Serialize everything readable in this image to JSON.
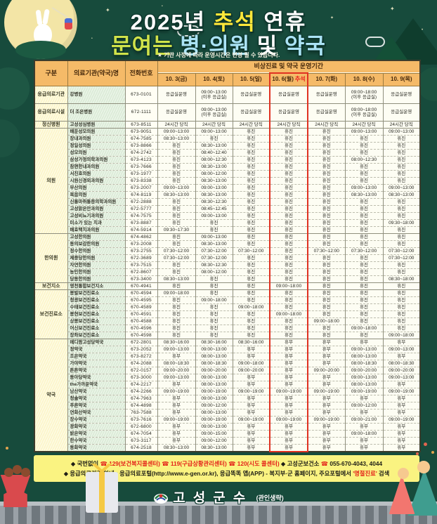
{
  "header": {
    "title1_year": "2025년 ",
    "title1_chuseok": "추석",
    "title1_rest": " 연휴",
    "title2_open": "문여는 ",
    "title2_hospital": "병·의원",
    "title2_and": " 및 ",
    "title2_pharmacy": "약국",
    "notice": "★ 기관 사정에 따라 운영시간은 변경 될 수 있습니다."
  },
  "table": {
    "col_headers": {
      "gubun": "구분",
      "name": "의료기관(약국)명",
      "phone": "전화번호",
      "period": "비상진료 및 약국 운영기간"
    },
    "dates": [
      "10. 3(금)",
      "10. 4(토)",
      "10. 5(일)",
      "10. 6(월)",
      "10. 7(화)",
      "10. 8(수)",
      "10. 9(목)"
    ],
    "chuseok_label": "추석",
    "chuseok_col_index": 3,
    "groups": [
      {
        "label": "응급의료기관",
        "rows": [
          {
            "name": "강병원",
            "phone": "673-0101",
            "tall": true,
            "days": [
              "응급실운영",
              "09:00~13:00\n(이후 응급실)",
              "응급실운영",
              "응급실운영",
              "응급실운영",
              "09:00~18:00\n(이후 응급실)",
              "응급실운영"
            ]
          }
        ]
      },
      {
        "label": "응급의료시설",
        "rows": [
          {
            "name": "더 조은병원",
            "phone": "672-1111",
            "tall": true,
            "days": [
              "응급실운영",
              "09:00~13:00\n(이후 응급실)",
              "응급실운영",
              "응급실운영",
              "응급실운영",
              "09:00~18:00\n(이후 응급실)",
              "응급실운영"
            ]
          }
        ]
      },
      {
        "label": "정신병원",
        "rows": [
          {
            "name": "고성성심병원",
            "phone": "673-8511",
            "days": [
              "24시간 당직",
              "24시간 당직",
              "24시간 당직",
              "24시간 당직",
              "24시간 당직",
              "24시간 당직",
              "24시간 당직"
            ]
          }
        ]
      },
      {
        "label": "의원",
        "rows": [
          {
            "name": "배둔성모의원",
            "phone": "673-9051",
            "days": [
              "09:00~13:00",
              "09:00~13:00",
              "휴진",
              "휴진",
              "휴진",
              "09:00~13:00",
              "09:00~13:00"
            ]
          },
          {
            "name": "장내과의원",
            "phone": "674-7585",
            "days": [
              "08:30~13:00",
              "휴진",
              "휴진",
              "휴진",
              "휴진",
              "휴진",
              "휴진"
            ]
          },
          {
            "name": "정일성의원",
            "phone": "673-8866",
            "days": [
              "휴진",
              "08:30~13:00",
              "휴진",
              "휴진",
              "휴진",
              "휴진",
              "휴진"
            ]
          },
          {
            "name": "성모의원",
            "phone": "674-2742",
            "days": [
              "휴진",
              "08:40~12:40",
              "휴진",
              "휴진",
              "휴진",
              "휴진",
              "휴진"
            ]
          },
          {
            "name": "삼성가정의학과의원",
            "phone": "673-4123",
            "days": [
              "휴진",
              "08:00~12:30",
              "휴진",
              "휴진",
              "휴진",
              "08:00~12:30",
              "휴진"
            ]
          },
          {
            "name": "참편한내과의원",
            "phone": "673-7666",
            "days": [
              "휴진",
              "08:30~13:00",
              "휴진",
              "휴진",
              "휴진",
              "휴진",
              "휴진"
            ]
          },
          {
            "name": "서진호의원",
            "phone": "673-1977",
            "days": [
              "휴진",
              "08:00~12:00",
              "휴진",
              "휴진",
              "휴진",
              "휴진",
              "휴진"
            ]
          },
          {
            "name": "시원신경외과의원",
            "phone": "673-8338",
            "days": [
              "휴진",
              "08:30~13:00",
              "휴진",
              "휴진",
              "휴진",
              "휴진",
              "휴진"
            ]
          },
          {
            "name": "부산의원",
            "phone": "673-2007",
            "days": [
              "09:00~13:00",
              "09:00~13:00",
              "휴진",
              "휴진",
              "휴진",
              "09:00~13:00",
              "09:00~13:00"
            ]
          },
          {
            "name": "복음의원",
            "phone": "674-8119",
            "days": [
              "08:30~13:00",
              "08:30~13:00",
              "휴진",
              "휴진",
              "휴진",
              "08:30~13:00",
              "08:30~13:00"
            ]
          },
          {
            "name": "신통마취통증의학과의원",
            "phone": "672-2888",
            "days": [
              "휴진",
              "08:30~12:30",
              "휴진",
              "휴진",
              "휴진",
              "휴진",
              "휴진"
            ]
          },
          {
            "name": "고성맑은안과의원",
            "phone": "672-5777",
            "days": [
              "휴진",
              "08:45~12:45",
              "휴진",
              "휴진",
              "휴진",
              "휴진",
              "휴진"
            ]
          },
          {
            "name": "고성비뇨기과의원",
            "phone": "674-7575",
            "days": [
              "휴진",
              "09:00~13:00",
              "휴진",
              "휴진",
              "휴진",
              "휴진",
              "휴진"
            ]
          },
          {
            "name": "미소가 있는 치과",
            "phone": "673-8887",
            "days": [
              "휴진",
              "휴진",
              "휴진",
              "휴진",
              "휴진",
              "휴진",
              "09:30~18:00"
            ]
          },
          {
            "name": "배효택치과의원",
            "phone": "674-5914",
            "days": [
              "09:30~17:30",
              "휴진",
              "휴진",
              "휴진",
              "휴진",
              "휴진",
              "휴진"
            ]
          }
        ]
      },
      {
        "label": "한의원",
        "rows": [
          {
            "name": "고성한의원",
            "phone": "674-4862",
            "days": [
              "휴진",
              "09:00~13:00",
              "휴진",
              "휴진",
              "휴진",
              "휴진",
              "휴진"
            ]
          },
          {
            "name": "동의보감한의원",
            "phone": "673-2008",
            "days": [
              "휴진",
              "08:30~13:00",
              "휴진",
              "휴진",
              "휴진",
              "휴진",
              "휴진"
            ]
          },
          {
            "name": "정수한의원",
            "phone": "673-2755",
            "days": [
              "07:30~12:00",
              "07:30~12:00",
              "07:30~12:00",
              "휴진",
              "07:30~12:00",
              "07:30~12:00",
              "07:30~12:00"
            ]
          },
          {
            "name": "제중당한의원",
            "phone": "672-3689",
            "days": [
              "07:30~12:00",
              "07:30~12:00",
              "휴진",
              "휴진",
              "휴진",
              "휴진",
              "07:30~12:00"
            ]
          },
          {
            "name": "자연한의원",
            "phone": "673-7515",
            "days": [
              "휴진",
              "08:30~12:30",
              "휴진",
              "휴진",
              "휴진",
              "휴진",
              "휴진"
            ]
          },
          {
            "name": "농민한의원",
            "phone": "672-8607",
            "days": [
              "휴진",
              "08:00~12:00",
              "휴진",
              "휴진",
              "휴진",
              "휴진",
              "휴진"
            ]
          },
          {
            "name": "당동한의원",
            "phone": "673-3400",
            "days": [
              "08:30~13:00",
              "휴진",
              "휴진",
              "휴진",
              "휴진",
              "휴진",
              "08:30~18:00"
            ]
          }
        ]
      },
      {
        "label": "보건지소",
        "rows": [
          {
            "name": "영천통합보건지소",
            "phone": "670-4941",
            "days": [
              "휴진",
              "휴진",
              "휴진",
              "09:00~18:00",
              "휴진",
              "휴진",
              "휴진"
            ]
          }
        ]
      },
      {
        "label": "보건진료소",
        "rows": [
          {
            "name": "봉발보건진료소",
            "phone": "670-4594",
            "days": [
              "09:00~18:00",
              "휴진",
              "휴진",
              "휴진",
              "휴진",
              "휴진",
              "휴진"
            ]
          },
          {
            "name": "청광보건진료소",
            "phone": "670-4595",
            "days": [
              "휴진",
              "09:00~18:00",
              "휴진",
              "휴진",
              "휴진",
              "휴진",
              "휴진"
            ]
          },
          {
            "name": "수태보건진료소",
            "phone": "670-4589",
            "days": [
              "휴진",
              "휴진",
              "09:00~18:00",
              "휴진",
              "휴진",
              "휴진",
              "휴진"
            ]
          },
          {
            "name": "봉현보건진료소",
            "phone": "670-4591",
            "days": [
              "휴진",
              "휴진",
              "휴진",
              "09:00~18:00",
              "휴진",
              "휴진",
              "휴진"
            ]
          },
          {
            "name": "상봉보건진료소",
            "phone": "670-4588",
            "days": [
              "휴진",
              "휴진",
              "휴진",
              "휴진",
              "09:00~18:00",
              "휴진",
              "휴진"
            ]
          },
          {
            "name": "어신보건진료소",
            "phone": "670-4596",
            "days": [
              "휴진",
              "휴진",
              "휴진",
              "휴진",
              "휴진",
              "09:00~18:00",
              "휴진"
            ]
          },
          {
            "name": "장좌보건진료소",
            "phone": "670-4598",
            "days": [
              "휴진",
              "휴진",
              "휴진",
              "휴진",
              "휴진",
              "휴진",
              "09:00~18:00"
            ]
          }
        ]
      },
      {
        "label": "약국",
        "rows": [
          {
            "name": "메디팜고성당약국",
            "phone": "672-2801",
            "days": [
              "08:30~16:00",
              "08:30~16:00",
              "08:30~16:00",
              "휴무",
              "휴무",
              "휴무",
              "휴무"
            ]
          },
          {
            "name": "정약국",
            "phone": "673-2052",
            "days": [
              "09:00~13:00",
              "09:00~13:00",
              "휴무",
              "휴무",
              "휴무",
              "09:00~13:00",
              "09:00~13:00"
            ]
          },
          {
            "name": "조은약국",
            "phone": "673-8272",
            "days": [
              "휴무",
              "08:00~13:00",
              "휴무",
              "휴무",
              "휴무",
              "08:00~13:00",
              "휴무"
            ]
          },
          {
            "name": "가야약국",
            "phone": "674-2088",
            "days": [
              "08:00~18:30",
              "08:00~18:30",
              "09:00~18:00",
              "휴무",
              "휴무",
              "08:00~18:30",
              "08:00~18:30"
            ]
          },
          {
            "name": "튼튼약국",
            "phone": "672-0157",
            "days": [
              "09:00~20:00",
              "09:00~20:00",
              "09:00~20:00",
              "휴무",
              "09:00~20:00",
              "09:00~20:00",
              "09:00~20:00"
            ]
          },
          {
            "name": "동아당약국",
            "phone": "673-3000",
            "days": [
              "09:00~13:00",
              "09:00~13:00",
              "휴무",
              "휴무",
              "휴무",
              "09:00~13:00",
              "09:00~13:00"
            ]
          },
          {
            "name": "the가까운약국",
            "phone": "674-2217",
            "days": [
              "휴무",
              "08:00~13:00",
              "휴무",
              "휴무",
              "휴무",
              "08:00~13:00",
              "휴무"
            ]
          },
          {
            "name": "남산약국",
            "phone": "674-2266",
            "days": [
              "09:00~19:00",
              "09:00~19:00",
              "09:00~19:00",
              "09:00~19:00",
              "09:00~19:00",
              "09:00~19:00",
              "09:00~19:00"
            ]
          },
          {
            "name": "청솔약국",
            "phone": "674-7963",
            "days": [
              "휴무",
              "09:00~13:00",
              "휴무",
              "휴무",
              "휴무",
              "휴무",
              "휴무"
            ]
          },
          {
            "name": "푸른약국",
            "phone": "674-4898",
            "days": [
              "휴무",
              "09:00~12:00",
              "휴무",
              "휴무",
              "휴무",
              "09:00~12:00",
              "휴무"
            ]
          },
          {
            "name": "연화산약국",
            "phone": "763-7588",
            "days": [
              "휴무",
              "08:00~13:00",
              "휴무",
              "휴무",
              "휴무",
              "휴무",
              "휴무"
            ]
          },
          {
            "name": "장수약국",
            "phone": "673-7616",
            "days": [
              "09:00~19:00",
              "09:00~19:00",
              "09:00~19:00",
              "09:00~19:00",
              "09:00~19:00",
              "09:00~21:00",
              "09:00~19:00"
            ]
          },
          {
            "name": "광화약국",
            "phone": "672-6800",
            "days": [
              "휴무",
              "09:00~13:00",
              "휴무",
              "휴무",
              "휴무",
              "휴무",
              "휴무"
            ]
          },
          {
            "name": "밝은약국",
            "phone": "674-7054",
            "days": [
              "휴무",
              "09:00~15:00",
              "휴무",
              "휴무",
              "휴무",
              "09:00~18:00",
              "휴무"
            ]
          },
          {
            "name": "한수약국",
            "phone": "673-3117",
            "days": [
              "휴무",
              "09:00~12:00",
              "휴무",
              "휴무",
              "휴무",
              "휴무",
              "휴무"
            ]
          },
          {
            "name": "동화약국",
            "phone": "674-2518",
            "days": [
              "08:30~13:00",
              "08:30~13:00",
              "휴무",
              "휴무",
              "휴무",
              "휴무",
              "휴무"
            ]
          }
        ]
      }
    ]
  },
  "footer": {
    "line1": [
      {
        "text": "◆ 국번없이 "
      },
      {
        "text": "☎ 129(보건복지콜센터) ",
        "red": true
      },
      {
        "text": "☎ 119(구급상황관리센터) ",
        "red": true
      },
      {
        "text": "☎ 120(시도 콜센터)",
        "red": true
      },
      {
        "text": "    ◆ 고성군보건소 "
      },
      {
        "text": "☎ ",
        "red": true
      },
      {
        "text": "055-670-4043, 4044"
      }
    ],
    "line2": [
      {
        "text": "◆ 응급의료기관 안내 : 응급의료포털(http://www.e-gen.or.kr), 응급똑똑 앱(APP) - 복지부·군 홈페이지, 주요포털에서 "
      },
      {
        "text": "'명절진료'",
        "red": true
      },
      {
        "text": " 검색"
      }
    ]
  },
  "bottom": {
    "signature": "고성군수",
    "seal_note": "(관인생략)"
  }
}
